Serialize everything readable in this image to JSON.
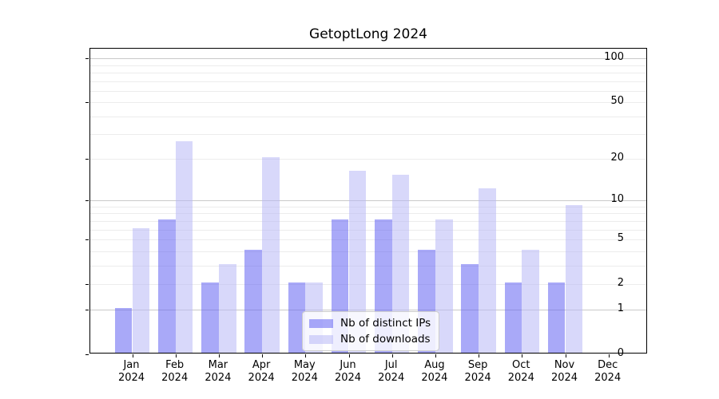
{
  "chart_data": {
    "type": "bar",
    "title": "GetoptLong 2024",
    "yscale": "log10(1+x)",
    "categories": [
      {
        "month": "Jan",
        "year": "2024"
      },
      {
        "month": "Feb",
        "year": "2024"
      },
      {
        "month": "Mar",
        "year": "2024"
      },
      {
        "month": "Apr",
        "year": "2024"
      },
      {
        "month": "May",
        "year": "2024"
      },
      {
        "month": "Jun",
        "year": "2024"
      },
      {
        "month": "Jul",
        "year": "2024"
      },
      {
        "month": "Aug",
        "year": "2024"
      },
      {
        "month": "Sep",
        "year": "2024"
      },
      {
        "month": "Oct",
        "year": "2024"
      },
      {
        "month": "Nov",
        "year": "2024"
      },
      {
        "month": "Dec",
        "year": "2024"
      }
    ],
    "series": [
      {
        "name": "Nb of distinct IPs",
        "color": "rgba(98,98,242,0.55)",
        "values": [
          1,
          7,
          2,
          4,
          2,
          7,
          7,
          4,
          3,
          2,
          2,
          0
        ]
      },
      {
        "name": "Nb of downloads",
        "color": "rgba(184,184,246,0.55)",
        "values": [
          6,
          26,
          3,
          20,
          2,
          16,
          15,
          7,
          12,
          4,
          9,
          0
        ]
      }
    ],
    "yticks": [
      0,
      1,
      2,
      5,
      10,
      20,
      50,
      100
    ],
    "ytick_major_grid": [
      1,
      10,
      100
    ],
    "ytick_minor_grid": [
      2,
      3,
      4,
      5,
      6,
      7,
      8,
      9,
      20,
      30,
      40,
      50,
      60,
      70,
      80,
      90
    ],
    "ylim": [
      0,
      117
    ],
    "grid": true,
    "legend_position": "lower center",
    "colors": {
      "grid_major": "#c9c9c9",
      "grid_minor": "#ececec",
      "spine": "#000000",
      "background": "#ffffff"
    }
  }
}
